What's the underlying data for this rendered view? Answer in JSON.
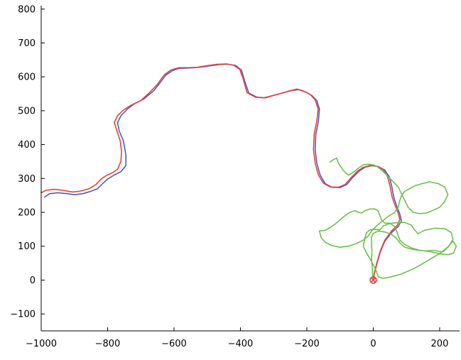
{
  "chart_data": {
    "type": "line",
    "title": "",
    "xlabel": "",
    "ylabel": "",
    "xlim": [
      -1000,
      260
    ],
    "ylim": [
      -150,
      810
    ],
    "xticks": [
      -1000,
      -800,
      -600,
      -400,
      -200,
      0,
      200
    ],
    "yticks": [
      -100,
      0,
      100,
      200,
      300,
      400,
      500,
      600,
      700,
      800
    ],
    "xtick_labels": [
      "−1000",
      "−800",
      "−600",
      "−400",
      "−200",
      "0",
      "200"
    ],
    "ytick_labels": [
      "−100",
      "0",
      "100",
      "200",
      "300",
      "400",
      "500",
      "600",
      "700",
      "800"
    ],
    "grid": false,
    "legend": null,
    "origin_marker": {
      "x": 0,
      "y": 0,
      "color": "#e03030",
      "symbol": "circled-x"
    },
    "series": [
      {
        "color": "#4a5fb8",
        "points": [
          [
            -990,
            245
          ],
          [
            -975,
            255
          ],
          [
            -950,
            258
          ],
          [
            -920,
            255
          ],
          [
            -900,
            252
          ],
          [
            -875,
            255
          ],
          [
            -850,
            262
          ],
          [
            -830,
            270
          ],
          [
            -815,
            285
          ],
          [
            -800,
            298
          ],
          [
            -780,
            310
          ],
          [
            -760,
            320
          ],
          [
            -745,
            338
          ],
          [
            -745,
            370
          ],
          [
            -752,
            410
          ],
          [
            -765,
            440
          ],
          [
            -770,
            465
          ],
          [
            -760,
            485
          ],
          [
            -740,
            505
          ],
          [
            -720,
            520
          ],
          [
            -690,
            535
          ],
          [
            -660,
            560
          ],
          [
            -640,
            585
          ],
          [
            -625,
            605
          ],
          [
            -605,
            618
          ],
          [
            -585,
            625
          ],
          [
            -555,
            626
          ],
          [
            -525,
            628
          ],
          [
            -495,
            632
          ],
          [
            -465,
            636
          ],
          [
            -438,
            637
          ],
          [
            -415,
            634
          ],
          [
            -397,
            620
          ],
          [
            -388,
            590
          ],
          [
            -375,
            552
          ],
          [
            -350,
            540
          ],
          [
            -325,
            538
          ],
          [
            -300,
            545
          ],
          [
            -270,
            553
          ],
          [
            -245,
            560
          ],
          [
            -225,
            562
          ],
          [
            -205,
            556
          ],
          [
            -185,
            545
          ],
          [
            -170,
            530
          ],
          [
            -162,
            505
          ],
          [
            -165,
            470
          ],
          [
            -173,
            430
          ],
          [
            -175,
            385
          ],
          [
            -170,
            345
          ],
          [
            -160,
            310
          ],
          [
            -145,
            285
          ],
          [
            -125,
            274
          ],
          [
            -100,
            273
          ],
          [
            -80,
            282
          ],
          [
            -62,
            303
          ],
          [
            -42,
            322
          ],
          [
            -25,
            333
          ],
          [
            -5,
            338
          ],
          [
            15,
            335
          ],
          [
            35,
            325
          ],
          [
            48,
            305
          ],
          [
            55,
            280
          ],
          [
            62,
            245
          ],
          [
            70,
            220
          ],
          [
            80,
            195
          ],
          [
            85,
            175
          ],
          [
            75,
            158
          ],
          [
            55,
            140
          ],
          [
            35,
            115
          ],
          [
            22,
            85
          ],
          [
            10,
            45
          ],
          [
            3,
            18
          ],
          [
            0,
            2
          ]
        ]
      },
      {
        "color": "#e8403a",
        "points": [
          [
            -1000,
            258
          ],
          [
            -985,
            265
          ],
          [
            -960,
            268
          ],
          [
            -935,
            265
          ],
          [
            -905,
            260
          ],
          [
            -880,
            263
          ],
          [
            -855,
            270
          ],
          [
            -835,
            282
          ],
          [
            -820,
            298
          ],
          [
            -805,
            308
          ],
          [
            -785,
            317
          ],
          [
            -770,
            327
          ],
          [
            -760,
            350
          ],
          [
            -758,
            380
          ],
          [
            -762,
            410
          ],
          [
            -770,
            435
          ],
          [
            -780,
            465
          ],
          [
            -770,
            485
          ],
          [
            -755,
            500
          ],
          [
            -730,
            516
          ],
          [
            -700,
            530
          ],
          [
            -675,
            552
          ],
          [
            -650,
            578
          ],
          [
            -630,
            605
          ],
          [
            -610,
            620
          ],
          [
            -585,
            627
          ],
          [
            -560,
            627
          ],
          [
            -530,
            628
          ],
          [
            -500,
            633
          ],
          [
            -470,
            637
          ],
          [
            -440,
            638
          ],
          [
            -420,
            634
          ],
          [
            -402,
            622
          ],
          [
            -392,
            595
          ],
          [
            -380,
            553
          ],
          [
            -355,
            540
          ],
          [
            -330,
            538
          ],
          [
            -305,
            544
          ],
          [
            -275,
            552
          ],
          [
            -250,
            559
          ],
          [
            -230,
            564
          ],
          [
            -210,
            558
          ],
          [
            -190,
            548
          ],
          [
            -175,
            532
          ],
          [
            -166,
            505
          ],
          [
            -170,
            470
          ],
          [
            -178,
            430
          ],
          [
            -180,
            385
          ],
          [
            -175,
            345
          ],
          [
            -165,
            310
          ],
          [
            -150,
            286
          ],
          [
            -130,
            275
          ],
          [
            -105,
            274
          ],
          [
            -85,
            282
          ],
          [
            -67,
            302
          ],
          [
            -47,
            322
          ],
          [
            -30,
            333
          ],
          [
            -10,
            338
          ],
          [
            10,
            336
          ],
          [
            30,
            326
          ],
          [
            43,
            305
          ],
          [
            50,
            280
          ],
          [
            57,
            245
          ],
          [
            65,
            222
          ],
          [
            75,
            198
          ],
          [
            80,
            178
          ],
          [
            72,
            161
          ],
          [
            55,
            145
          ],
          [
            35,
            118
          ],
          [
            22,
            88
          ],
          [
            10,
            48
          ],
          [
            3,
            20
          ],
          [
            0,
            2
          ]
        ]
      },
      {
        "color": "#6cc04a",
        "points": [
          [
            0,
            2
          ],
          [
            -2,
            15
          ],
          [
            -3,
            35
          ],
          [
            -5,
            60
          ],
          [
            -4,
            85
          ],
          [
            -5,
            105
          ],
          [
            -6,
            125
          ],
          [
            0,
            138
          ],
          [
            15,
            145
          ],
          [
            35,
            142
          ],
          [
            55,
            135
          ],
          [
            70,
            123
          ],
          [
            80,
            110
          ],
          [
            95,
            97
          ],
          [
            120,
            90
          ],
          [
            155,
            86
          ],
          [
            180,
            88
          ],
          [
            210,
            83
          ],
          [
            228,
            100
          ],
          [
            240,
            120
          ],
          [
            235,
            140
          ],
          [
            215,
            152
          ],
          [
            185,
            153
          ],
          [
            155,
            147
          ],
          [
            135,
            137
          ],
          [
            125,
            147
          ],
          [
            115,
            162
          ],
          [
            95,
            170
          ],
          [
            75,
            170
          ],
          [
            50,
            167
          ],
          [
            30,
            160
          ],
          [
            20,
            148
          ],
          [
            5,
            150
          ],
          [
            -10,
            148
          ],
          [
            -20,
            140
          ],
          [
            -25,
            125
          ],
          [
            -30,
            100
          ],
          [
            -20,
            80
          ],
          [
            -5,
            55
          ],
          [
            10,
            25
          ],
          [
            15,
            10
          ],
          [
            30,
            5
          ],
          [
            55,
            10
          ],
          [
            85,
            18
          ],
          [
            125,
            35
          ],
          [
            165,
            58
          ],
          [
            200,
            78
          ],
          [
            225,
            98
          ],
          [
            240,
            115
          ],
          [
            250,
            100
          ],
          [
            242,
            80
          ],
          [
            225,
            75
          ],
          [
            205,
            77
          ],
          [
            190,
            80
          ],
          [
            165,
            85
          ],
          [
            140,
            88
          ],
          [
            115,
            95
          ],
          [
            95,
            105
          ],
          [
            80,
            118
          ],
          [
            72,
            140
          ],
          [
            65,
            158
          ],
          [
            50,
            168
          ],
          [
            35,
            168
          ],
          [
            25,
            178
          ],
          [
            20,
            190
          ],
          [
            15,
            204
          ],
          [
            5,
            210
          ],
          [
            -10,
            210
          ],
          [
            -25,
            205
          ],
          [
            -35,
            198
          ],
          [
            -45,
            200
          ],
          [
            -55,
            205
          ],
          [
            -70,
            200
          ],
          [
            -85,
            190
          ],
          [
            -100,
            178
          ],
          [
            -115,
            165
          ],
          [
            -130,
            155
          ],
          [
            -145,
            147
          ],
          [
            -162,
            145
          ],
          [
            -157,
            125
          ],
          [
            -145,
            112
          ],
          [
            -125,
            102
          ],
          [
            -100,
            97
          ],
          [
            -75,
            100
          ],
          [
            -50,
            108
          ],
          [
            -30,
            118
          ],
          [
            -15,
            130
          ],
          [
            -5,
            145
          ],
          [
            10,
            160
          ],
          [
            25,
            172
          ],
          [
            45,
            188
          ],
          [
            65,
            200
          ],
          [
            75,
            215
          ],
          [
            80,
            235
          ],
          [
            85,
            250
          ],
          [
            95,
            262
          ],
          [
            110,
            270
          ],
          [
            125,
            278
          ],
          [
            145,
            284
          ],
          [
            170,
            290
          ],
          [
            195,
            285
          ],
          [
            215,
            275
          ],
          [
            225,
            252
          ],
          [
            215,
            232
          ],
          [
            200,
            215
          ],
          [
            180,
            206
          ],
          [
            160,
            198
          ],
          [
            140,
            196
          ],
          [
            120,
            200
          ],
          [
            105,
            215
          ],
          [
            95,
            235
          ],
          [
            85,
            255
          ],
          [
            75,
            275
          ],
          [
            60,
            290
          ],
          [
            45,
            305
          ],
          [
            30,
            320
          ],
          [
            15,
            333
          ],
          [
            0,
            340
          ],
          [
            -15,
            342
          ],
          [
            -30,
            340
          ],
          [
            -45,
            330
          ],
          [
            -60,
            318
          ],
          [
            -75,
            310
          ],
          [
            -85,
            318
          ],
          [
            -95,
            330
          ],
          [
            -105,
            345
          ],
          [
            -110,
            360
          ],
          [
            -120,
            356
          ],
          [
            -130,
            348
          ]
        ]
      }
    ]
  }
}
